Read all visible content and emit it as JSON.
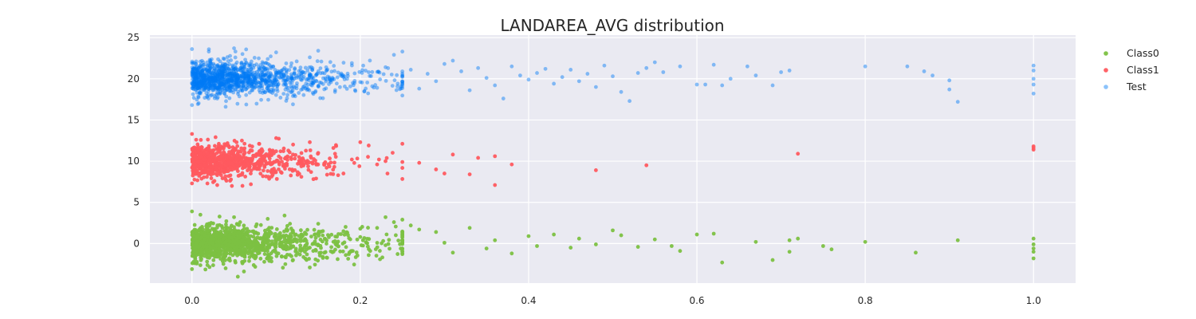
{
  "chart_data": {
    "type": "scatter",
    "title": "LANDAREA_AVG distribution",
    "xlabel": "",
    "ylabel": "",
    "xlim": [
      -0.05,
      1.05
    ],
    "ylim": [
      -4.8,
      25.3
    ],
    "xticks": [
      0.0,
      0.2,
      0.4,
      0.6,
      0.8,
      1.0
    ],
    "xtick_labels": [
      "0.0",
      "0.2",
      "0.4",
      "0.6",
      "0.8",
      "1.0"
    ],
    "yticks": [
      0,
      5,
      10,
      15,
      20,
      25
    ],
    "ytick_labels": [
      "0",
      "5",
      "10",
      "15",
      "20",
      "25"
    ],
    "grid": true,
    "legend_position": "upper-right, outside plot",
    "background": "#EAEAF2",
    "series": [
      {
        "name": "Class0",
        "color": "#7CC142",
        "alpha": 0.95,
        "y_center": 0,
        "dense_points": [
          [
            0.005,
            0.4
          ],
          [
            0.012,
            -0.8
          ],
          [
            0.02,
            1.3
          ],
          [
            0.03,
            -1.6
          ],
          [
            0.04,
            0.2
          ],
          [
            0.05,
            2.0
          ],
          [
            0.06,
            -2.4
          ],
          [
            0.07,
            0.9
          ],
          [
            0.08,
            -0.3
          ],
          [
            0.09,
            1.7
          ],
          [
            0.1,
            -1.1
          ],
          [
            0.11,
            0.6
          ],
          [
            0.12,
            -2.0
          ],
          [
            0.13,
            1.1
          ],
          [
            0.14,
            -0.5
          ],
          [
            0.15,
            2.4
          ],
          [
            0.16,
            -1.7
          ],
          [
            0.17,
            0.3
          ],
          [
            0.18,
            1.5
          ],
          [
            0.19,
            -0.9
          ],
          [
            0.2,
            0.8
          ],
          [
            0.21,
            -1.4
          ],
          [
            0.22,
            1.9
          ],
          [
            0.23,
            -0.2
          ],
          [
            0.0,
            3.9
          ],
          [
            0.01,
            3.5
          ],
          [
            0.05,
            3.2
          ],
          [
            0.09,
            3.0
          ],
          [
            0.11,
            3.4
          ],
          [
            0.0,
            -3.1
          ],
          [
            0.04,
            -3.0
          ],
          [
            0.14,
            -2.9
          ]
        ],
        "points": [
          [
            0.23,
            3.2
          ],
          [
            0.24,
            2.6
          ],
          [
            0.25,
            2.9
          ],
          [
            0.26,
            2.2
          ],
          [
            0.27,
            1.7
          ],
          [
            0.29,
            1.4
          ],
          [
            0.3,
            0.1
          ],
          [
            0.31,
            -1.1
          ],
          [
            0.33,
            1.9
          ],
          [
            0.35,
            -0.6
          ],
          [
            0.36,
            0.4
          ],
          [
            0.38,
            -1.2
          ],
          [
            0.4,
            0.9
          ],
          [
            0.41,
            -0.3
          ],
          [
            0.43,
            1.1
          ],
          [
            0.45,
            -0.5
          ],
          [
            0.46,
            0.6
          ],
          [
            0.48,
            -0.1
          ],
          [
            0.5,
            1.6
          ],
          [
            0.51,
            1.0
          ],
          [
            0.53,
            -0.4
          ],
          [
            0.55,
            0.5
          ],
          [
            0.57,
            -0.3
          ],
          [
            0.58,
            -0.9
          ],
          [
            0.6,
            1.1
          ],
          [
            0.62,
            1.2
          ],
          [
            0.63,
            -2.3
          ],
          [
            0.67,
            0.2
          ],
          [
            0.69,
            -2.0
          ],
          [
            0.71,
            0.4
          ],
          [
            0.71,
            -1.0
          ],
          [
            0.72,
            0.6
          ],
          [
            0.75,
            -0.3
          ],
          [
            0.76,
            -0.7
          ],
          [
            0.8,
            0.2
          ],
          [
            0.86,
            -1.1
          ],
          [
            0.91,
            0.4
          ],
          [
            1.0,
            0.6
          ],
          [
            1.0,
            -0.1
          ],
          [
            1.0,
            -0.6
          ],
          [
            1.0,
            -1.0
          ],
          [
            1.0,
            -1.8
          ]
        ]
      },
      {
        "name": "Class1",
        "color": "#FF5A5F",
        "alpha": 0.95,
        "y_center": 10,
        "dense_points": [
          [
            0.005,
            12.6
          ],
          [
            0.01,
            9.1
          ],
          [
            0.02,
            10.7
          ],
          [
            0.03,
            8.3
          ],
          [
            0.04,
            11.9
          ],
          [
            0.05,
            9.7
          ],
          [
            0.06,
            7.0
          ],
          [
            0.07,
            10.3
          ],
          [
            0.08,
            12.1
          ],
          [
            0.09,
            8.8
          ],
          [
            0.1,
            11.2
          ],
          [
            0.11,
            9.4
          ],
          [
            0.12,
            10.8
          ],
          [
            0.13,
            8.1
          ],
          [
            0.14,
            12.3
          ],
          [
            0.0,
            13.3
          ],
          [
            0.0,
            7.3
          ],
          [
            0.03,
            7.1
          ],
          [
            0.07,
            7.2
          ],
          [
            0.1,
            12.8
          ]
        ],
        "points": [
          [
            0.15,
            11.0
          ],
          [
            0.16,
            9.2
          ],
          [
            0.17,
            10.9
          ],
          [
            0.18,
            8.5
          ],
          [
            0.19,
            10.2
          ],
          [
            0.2,
            12.3
          ],
          [
            0.21,
            11.9
          ],
          [
            0.22,
            9.6
          ],
          [
            0.23,
            10.0
          ],
          [
            0.25,
            9.9
          ],
          [
            0.27,
            9.8
          ],
          [
            0.29,
            9.0
          ],
          [
            0.3,
            8.5
          ],
          [
            0.31,
            10.8
          ],
          [
            0.33,
            8.4
          ],
          [
            0.34,
            10.4
          ],
          [
            0.36,
            10.6
          ],
          [
            0.36,
            7.1
          ],
          [
            0.38,
            9.6
          ],
          [
            0.48,
            8.9
          ],
          [
            0.54,
            9.5
          ],
          [
            0.72,
            10.9
          ],
          [
            1.0,
            11.8
          ],
          [
            1.0,
            11.4
          ],
          [
            1.0,
            11.6
          ]
        ]
      },
      {
        "name": "Test",
        "color": "#007BF7",
        "alpha": 0.45,
        "y_center": 20,
        "dense_points": [
          [
            0.005,
            22.1
          ],
          [
            0.01,
            18.2
          ],
          [
            0.02,
            20.9
          ],
          [
            0.03,
            17.6
          ],
          [
            0.04,
            21.7
          ],
          [
            0.05,
            19.3
          ],
          [
            0.06,
            23.0
          ],
          [
            0.07,
            20.5
          ],
          [
            0.08,
            18.6
          ],
          [
            0.09,
            22.4
          ],
          [
            0.1,
            19.8
          ],
          [
            0.11,
            21.3
          ],
          [
            0.12,
            17.9
          ],
          [
            0.13,
            20.7
          ],
          [
            0.14,
            22.6
          ],
          [
            0.15,
            19.1
          ],
          [
            0.16,
            21.0
          ],
          [
            0.17,
            18.4
          ],
          [
            0.18,
            20.2
          ],
          [
            0.19,
            21.9
          ],
          [
            0.2,
            19.6
          ],
          [
            0.21,
            20.8
          ],
          [
            0.22,
            18.9
          ],
          [
            0.23,
            21.4
          ],
          [
            0.0,
            23.6
          ],
          [
            0.02,
            23.3
          ],
          [
            0.05,
            23.7
          ],
          [
            0.1,
            23.2
          ],
          [
            0.15,
            23.4
          ],
          [
            0.0,
            16.8
          ],
          [
            0.04,
            16.6
          ],
          [
            0.12,
            16.9
          ]
        ],
        "points": [
          [
            0.24,
            22.9
          ],
          [
            0.25,
            23.3
          ],
          [
            0.26,
            21.1
          ],
          [
            0.27,
            18.8
          ],
          [
            0.28,
            20.6
          ],
          [
            0.29,
            19.7
          ],
          [
            0.3,
            21.8
          ],
          [
            0.31,
            22.2
          ],
          [
            0.32,
            20.9
          ],
          [
            0.33,
            18.6
          ],
          [
            0.34,
            21.3
          ],
          [
            0.35,
            20.1
          ],
          [
            0.36,
            19.2
          ],
          [
            0.37,
            17.6
          ],
          [
            0.38,
            21.5
          ],
          [
            0.39,
            20.4
          ],
          [
            0.4,
            19.9
          ],
          [
            0.41,
            20.7
          ],
          [
            0.42,
            21.2
          ],
          [
            0.43,
            19.4
          ],
          [
            0.44,
            20.2
          ],
          [
            0.45,
            21.1
          ],
          [
            0.46,
            19.7
          ],
          [
            0.47,
            20.6
          ],
          [
            0.48,
            19.0
          ],
          [
            0.49,
            21.6
          ],
          [
            0.5,
            20.3
          ],
          [
            0.51,
            18.4
          ],
          [
            0.52,
            17.3
          ],
          [
            0.53,
            20.7
          ],
          [
            0.54,
            21.3
          ],
          [
            0.55,
            22.0
          ],
          [
            0.56,
            20.8
          ],
          [
            0.58,
            21.5
          ],
          [
            0.6,
            19.3
          ],
          [
            0.61,
            19.3
          ],
          [
            0.62,
            21.7
          ],
          [
            0.63,
            19.2
          ],
          [
            0.64,
            20.0
          ],
          [
            0.66,
            21.5
          ],
          [
            0.67,
            20.4
          ],
          [
            0.69,
            19.2
          ],
          [
            0.7,
            20.8
          ],
          [
            0.71,
            21.0
          ],
          [
            0.8,
            21.5
          ],
          [
            0.85,
            21.5
          ],
          [
            0.87,
            20.9
          ],
          [
            0.88,
            20.4
          ],
          [
            0.9,
            19.8
          ],
          [
            0.9,
            18.7
          ],
          [
            0.91,
            17.2
          ],
          [
            1.0,
            21.6
          ],
          [
            1.0,
            21.0
          ],
          [
            1.0,
            20.0
          ],
          [
            1.0,
            19.3
          ],
          [
            1.0,
            18.2
          ]
        ]
      }
    ]
  }
}
